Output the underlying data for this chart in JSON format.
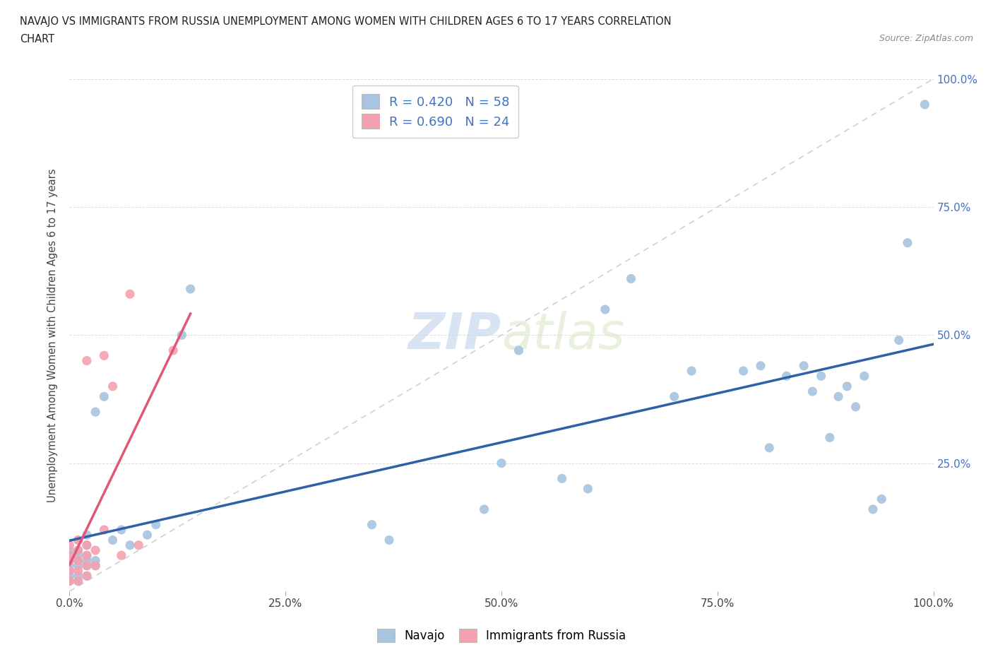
{
  "title_line1": "NAVAJO VS IMMIGRANTS FROM RUSSIA UNEMPLOYMENT AMONG WOMEN WITH CHILDREN AGES 6 TO 17 YEARS CORRELATION",
  "title_line2": "CHART",
  "source": "Source: ZipAtlas.com",
  "ylabel": "Unemployment Among Women with Children Ages 6 to 17 years",
  "xlim": [
    0.0,
    1.0
  ],
  "ylim": [
    0.0,
    1.0
  ],
  "xticks": [
    0.0,
    0.25,
    0.5,
    0.75,
    1.0
  ],
  "yticks": [
    0.25,
    0.5,
    0.75,
    1.0
  ],
  "xticklabels": [
    "0.0%",
    "25.0%",
    "50.0%",
    "75.0%",
    "100.0%"
  ],
  "yticklabels_right": [
    "25.0%",
    "50.0%",
    "75.0%",
    "100.0%"
  ],
  "navajo_R": 0.42,
  "navajo_N": 58,
  "russia_R": 0.69,
  "russia_N": 24,
  "navajo_color": "#a8c4e0",
  "russia_color": "#f5a0b0",
  "navajo_line_color": "#3060a8",
  "russia_line_color": "#e05878",
  "diagonal_color": "#d0d0d0",
  "watermark_zip": "ZIP",
  "watermark_atlas": "atlas",
  "navajo_x": [
    0.0,
    0.0,
    0.0,
    0.0,
    0.0,
    0.0,
    0.01,
    0.01,
    0.01,
    0.01,
    0.01,
    0.01,
    0.01,
    0.02,
    0.02,
    0.02,
    0.02,
    0.02,
    0.02,
    0.03,
    0.03,
    0.03,
    0.04,
    0.05,
    0.06,
    0.07,
    0.09,
    0.1,
    0.13,
    0.14,
    0.35,
    0.37,
    0.48,
    0.5,
    0.52,
    0.57,
    0.6,
    0.62,
    0.65,
    0.7,
    0.72,
    0.78,
    0.8,
    0.81,
    0.83,
    0.85,
    0.86,
    0.87,
    0.88,
    0.89,
    0.9,
    0.91,
    0.92,
    0.93,
    0.94,
    0.96,
    0.97,
    0.99
  ],
  "navajo_y": [
    0.02,
    0.03,
    0.04,
    0.05,
    0.06,
    0.08,
    0.02,
    0.03,
    0.05,
    0.06,
    0.07,
    0.08,
    0.1,
    0.03,
    0.05,
    0.06,
    0.07,
    0.09,
    0.11,
    0.05,
    0.06,
    0.35,
    0.38,
    0.1,
    0.12,
    0.09,
    0.11,
    0.13,
    0.5,
    0.59,
    0.13,
    0.1,
    0.16,
    0.25,
    0.47,
    0.22,
    0.2,
    0.55,
    0.61,
    0.38,
    0.43,
    0.43,
    0.44,
    0.28,
    0.42,
    0.44,
    0.39,
    0.42,
    0.3,
    0.38,
    0.4,
    0.36,
    0.42,
    0.16,
    0.18,
    0.49,
    0.68,
    0.95
  ],
  "russia_x": [
    0.0,
    0.0,
    0.0,
    0.0,
    0.0,
    0.01,
    0.01,
    0.01,
    0.01,
    0.01,
    0.02,
    0.02,
    0.02,
    0.02,
    0.02,
    0.03,
    0.03,
    0.04,
    0.04,
    0.05,
    0.06,
    0.07,
    0.08,
    0.12
  ],
  "russia_y": [
    0.02,
    0.04,
    0.06,
    0.07,
    0.09,
    0.02,
    0.04,
    0.06,
    0.08,
    0.1,
    0.03,
    0.05,
    0.07,
    0.09,
    0.45,
    0.05,
    0.08,
    0.12,
    0.46,
    0.4,
    0.07,
    0.58,
    0.09,
    0.47
  ]
}
